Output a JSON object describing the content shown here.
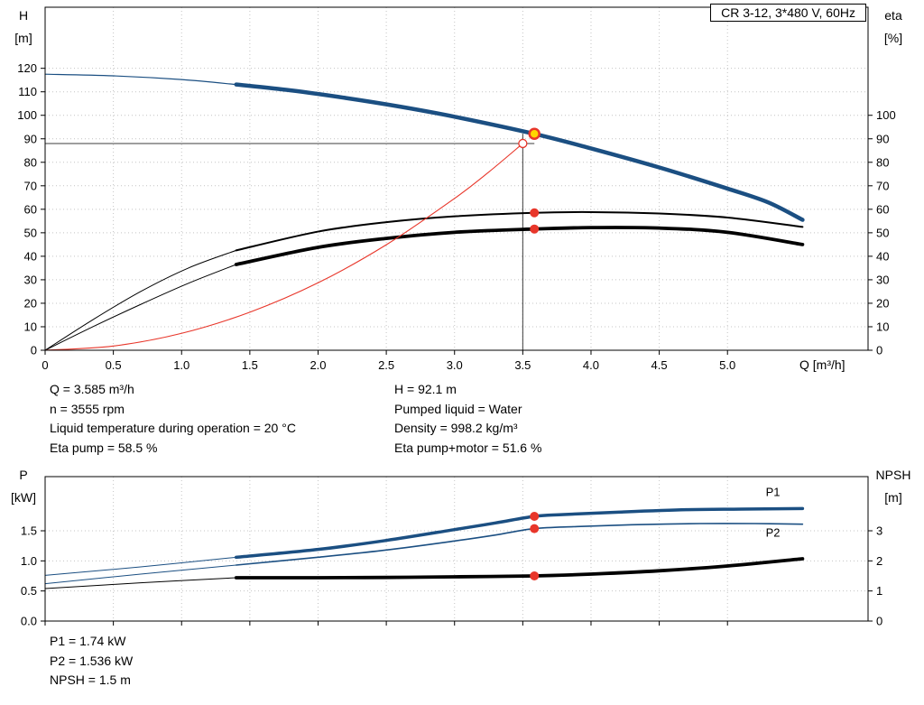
{
  "title_box": "CR 3-12, 3*480 V, 60Hz",
  "colors": {
    "curve_blue": "#1b4f82",
    "curve_black": "#000000",
    "system_red": "#e8362a",
    "marker_red": "#e8362a",
    "duty_yellow": "#ffd500",
    "grid_gray": "#c4c4c4",
    "crosshair_gray": "#3c3c3c"
  },
  "results_top": {
    "left": [
      "Q = 3.585 m³/h",
      "n = 3555 rpm",
      "Liquid temperature during operation = 20 °C",
      "Eta pump = 58.5 %"
    ],
    "right": [
      "H = 92.1 m",
      "Pumped liquid = Water",
      "Density = 998.2 kg/m³",
      "Eta pump+motor = 51.6 %"
    ]
  },
  "results_bottom": [
    "P1 = 1.74 kW",
    "P2 = 1.536 kW",
    "NPSH = 1.5 m"
  ],
  "chart_data": [
    {
      "id": "qh-eta",
      "type": "line",
      "title": "CR 3-12, 3*480 V, 60Hz",
      "x_axis": {
        "label": "Q [m³/h]",
        "min": 0,
        "max": 6.03,
        "ticks": [
          [
            0,
            "0"
          ],
          [
            0.5,
            "0.5"
          ],
          [
            1,
            "1.0"
          ],
          [
            1.5,
            "1.5"
          ],
          [
            2,
            "2.0"
          ],
          [
            2.5,
            "2.5"
          ],
          [
            3,
            "3.0"
          ],
          [
            3.5,
            "3.5"
          ],
          [
            4,
            "4.0"
          ],
          [
            4.5,
            "4.5"
          ],
          [
            5,
            "5.0"
          ]
        ]
      },
      "y_left": {
        "label_lines": [
          "H",
          "[m]"
        ],
        "min": 0,
        "max": 146,
        "ticks": [
          [
            0,
            "0"
          ],
          [
            10,
            "10"
          ],
          [
            20,
            "20"
          ],
          [
            30,
            "30"
          ],
          [
            40,
            "40"
          ],
          [
            50,
            "50"
          ],
          [
            60,
            "60"
          ],
          [
            70,
            "70"
          ],
          [
            80,
            "80"
          ],
          [
            90,
            "90"
          ],
          [
            100,
            "100"
          ],
          [
            110,
            "110"
          ],
          [
            120,
            "120"
          ]
        ]
      },
      "y_right": {
        "label_lines": [
          "eta",
          "[%]"
        ],
        "min": 0,
        "max": 146,
        "ticks": [
          [
            0,
            "0"
          ],
          [
            10,
            "10"
          ],
          [
            20,
            "20"
          ],
          [
            30,
            "30"
          ],
          [
            40,
            "40"
          ],
          [
            50,
            "50"
          ],
          [
            60,
            "60"
          ],
          [
            70,
            "70"
          ],
          [
            80,
            "80"
          ],
          [
            90,
            "90"
          ],
          [
            100,
            "100"
          ]
        ]
      },
      "duty_point": {
        "q": 3.585,
        "h": 92.1,
        "eta_pump": 58.5,
        "eta_pump_motor": 51.6
      },
      "series": [
        {
          "name": "head-curve-leadin",
          "axis": "left",
          "color": "#1b4f82",
          "width": 1.2,
          "points": [
            [
              0,
              117.5
            ],
            [
              0.5,
              116.8
            ],
            [
              1.0,
              115.2
            ],
            [
              1.4,
              113.1
            ]
          ]
        },
        {
          "name": "head-curve",
          "axis": "left",
          "color": "#1b4f82",
          "width": 4.5,
          "points": [
            [
              1.4,
              113.1
            ],
            [
              1.8,
              110.6
            ],
            [
              2.2,
              107.4
            ],
            [
              2.6,
              103.7
            ],
            [
              3.0,
              99.4
            ],
            [
              3.585,
              92.1
            ],
            [
              4.0,
              85.9
            ],
            [
              4.5,
              77.8
            ],
            [
              5.0,
              68.8
            ],
            [
              5.3,
              62.9
            ],
            [
              5.55,
              55.5
            ]
          ]
        },
        {
          "name": "eta-pump-curve-leadin",
          "axis": "right",
          "color": "#000000",
          "width": 1,
          "points": [
            [
              0,
              0
            ],
            [
              0.35,
              13
            ],
            [
              0.7,
              25
            ],
            [
              1.05,
              35
            ],
            [
              1.4,
              42.5
            ]
          ]
        },
        {
          "name": "eta-pump-curve",
          "axis": "right",
          "color": "#000000",
          "width": 2,
          "points": [
            [
              1.4,
              42.5
            ],
            [
              2.0,
              50.5
            ],
            [
              2.5,
              54.5
            ],
            [
              3.0,
              57.0
            ],
            [
              3.585,
              58.5
            ],
            [
              4.0,
              58.8
            ],
            [
              4.5,
              58.2
            ],
            [
              5.0,
              56.5
            ],
            [
              5.55,
              52.5
            ]
          ]
        },
        {
          "name": "eta-pump-motor-curve-leadin",
          "axis": "right",
          "color": "#000000",
          "width": 1,
          "points": [
            [
              0,
              0
            ],
            [
              0.35,
              10
            ],
            [
              0.7,
              19.5
            ],
            [
              1.05,
              28.5
            ],
            [
              1.4,
              36.5
            ]
          ]
        },
        {
          "name": "eta-pump-motor-curve",
          "axis": "right",
          "color": "#000000",
          "width": 3.8,
          "points": [
            [
              1.4,
              36.5
            ],
            [
              2.0,
              43.8
            ],
            [
              2.5,
              47.6
            ],
            [
              3.0,
              50.2
            ],
            [
              3.585,
              51.6
            ],
            [
              4.0,
              52.2
            ],
            [
              4.5,
              52.0
            ],
            [
              5.0,
              50.2
            ],
            [
              5.55,
              45.0
            ]
          ]
        },
        {
          "name": "system-resistance-curve",
          "axis": "left",
          "color": "#e8362a",
          "width": 1.1,
          "points": [
            [
              0,
              0
            ],
            [
              0.5,
              1.8
            ],
            [
              1.0,
              7.2
            ],
            [
              1.5,
              16.2
            ],
            [
              2.0,
              28.7
            ],
            [
              2.5,
              44.9
            ],
            [
              3.0,
              64.6
            ],
            [
              3.25,
              75.8
            ],
            [
              3.5,
              88.0
            ]
          ]
        }
      ],
      "crosshair": {
        "x": 3.5,
        "y": 88.0,
        "x_to": 3.585,
        "y_to": 92.1
      },
      "markers": [
        {
          "name": "duty-point-marker",
          "x": 3.585,
          "value": 92.1,
          "axis": "left",
          "style": "duty"
        },
        {
          "name": "rated-point-marker",
          "x": 3.5,
          "value": 88.0,
          "axis": "left",
          "style": "open"
        },
        {
          "name": "eta-pump-point-marker",
          "x": 3.585,
          "value": 58.5,
          "axis": "right",
          "style": "dot"
        },
        {
          "name": "eta-pump-motor-point-marker",
          "x": 3.585,
          "value": 51.6,
          "axis": "right",
          "style": "dot"
        }
      ]
    },
    {
      "id": "power-npsh",
      "type": "line",
      "title": "",
      "x_axis": {
        "label": "",
        "min": 0,
        "max": 6.03,
        "show_tick_labels": false,
        "ticks": [
          [
            0,
            "0"
          ],
          [
            0.5,
            "0.5"
          ],
          [
            1,
            "1.0"
          ],
          [
            1.5,
            "1.5"
          ],
          [
            2,
            "2.0"
          ],
          [
            2.5,
            "2.5"
          ],
          [
            3,
            "3.0"
          ],
          [
            3.5,
            "3.5"
          ],
          [
            4,
            "4.0"
          ],
          [
            4.5,
            "4.5"
          ],
          [
            5,
            "5.0"
          ]
        ]
      },
      "y_left": {
        "label_lines": [
          "P",
          "[kW]"
        ],
        "min": 0,
        "max": 2.4,
        "ticks": [
          [
            0,
            "0.0"
          ],
          [
            0.5,
            "0.5"
          ],
          [
            1,
            "1.0"
          ],
          [
            1.5,
            "1.5"
          ]
        ]
      },
      "y_right": {
        "label_lines": [
          "NPSH",
          "[m]"
        ],
        "min": 0,
        "max": 4.8,
        "ticks": [
          [
            0,
            "0"
          ],
          [
            1,
            "1"
          ],
          [
            2,
            "2"
          ],
          [
            3,
            "3"
          ]
        ]
      },
      "duty_point": {
        "q": 3.585,
        "p1_kw": 1.74,
        "p2_kw": 1.536,
        "npsh_m": 1.5
      },
      "series": [
        {
          "name": "p1-curve-leadin",
          "axis": "left",
          "color": "#1b4f82",
          "width": 1,
          "points": [
            [
              0,
              0.76
            ],
            [
              0.7,
              0.9
            ],
            [
              1.4,
              1.06
            ]
          ]
        },
        {
          "name": "p1-curve",
          "axis": "left",
          "color": "#1b4f82",
          "width": 3.5,
          "points": [
            [
              1.4,
              1.06
            ],
            [
              2.0,
              1.19
            ],
            [
              2.5,
              1.34
            ],
            [
              3.0,
              1.52
            ],
            [
              3.3,
              1.63
            ],
            [
              3.585,
              1.74
            ],
            [
              3.8,
              1.77
            ],
            [
              4.2,
              1.81
            ],
            [
              4.7,
              1.85
            ],
            [
              5.1,
              1.86
            ],
            [
              5.55,
              1.87
            ]
          ]
        },
        {
          "name": "p2-curve-leadin",
          "axis": "left",
          "color": "#1b4f82",
          "width": 1,
          "points": [
            [
              0,
              0.62
            ],
            [
              0.7,
              0.78
            ],
            [
              1.4,
              0.93
            ]
          ]
        },
        {
          "name": "p2-curve",
          "axis": "left",
          "color": "#1b4f82",
          "width": 1.6,
          "points": [
            [
              1.4,
              0.93
            ],
            [
              2.0,
              1.06
            ],
            [
              2.5,
              1.18
            ],
            [
              3.0,
              1.33
            ],
            [
              3.3,
              1.43
            ],
            [
              3.585,
              1.536
            ],
            [
              3.9,
              1.57
            ],
            [
              4.3,
              1.6
            ],
            [
              4.8,
              1.62
            ],
            [
              5.2,
              1.62
            ],
            [
              5.55,
              1.61
            ]
          ]
        },
        {
          "name": "npsh-curve-leadin",
          "axis": "right",
          "color": "#000000",
          "width": 1,
          "points": [
            [
              0,
              1.08
            ],
            [
              0.7,
              1.27
            ],
            [
              1.4,
              1.44
            ]
          ]
        },
        {
          "name": "npsh-curve",
          "axis": "right",
          "color": "#000000",
          "width": 3.8,
          "points": [
            [
              1.4,
              1.44
            ],
            [
              2.0,
              1.44
            ],
            [
              2.5,
              1.45
            ],
            [
              3.0,
              1.47
            ],
            [
              3.585,
              1.5
            ],
            [
              4.0,
              1.56
            ],
            [
              4.5,
              1.67
            ],
            [
              5.0,
              1.83
            ],
            [
              5.55,
              2.07
            ]
          ]
        }
      ],
      "markers": [
        {
          "name": "p1-point-marker",
          "x": 3.585,
          "value": 1.74,
          "axis": "left",
          "style": "dot"
        },
        {
          "name": "p2-point-marker",
          "x": 3.585,
          "value": 1.536,
          "axis": "left",
          "style": "dot"
        },
        {
          "name": "npsh-point-marker",
          "x": 3.585,
          "value": 1.5,
          "axis": "right",
          "style": "dot"
        }
      ],
      "curve_labels": [
        {
          "text": "P1",
          "x": 5.28,
          "y": 2.08,
          "axis": "left"
        },
        {
          "text": "P2",
          "x": 5.28,
          "y": 1.4,
          "axis": "left"
        }
      ]
    }
  ]
}
